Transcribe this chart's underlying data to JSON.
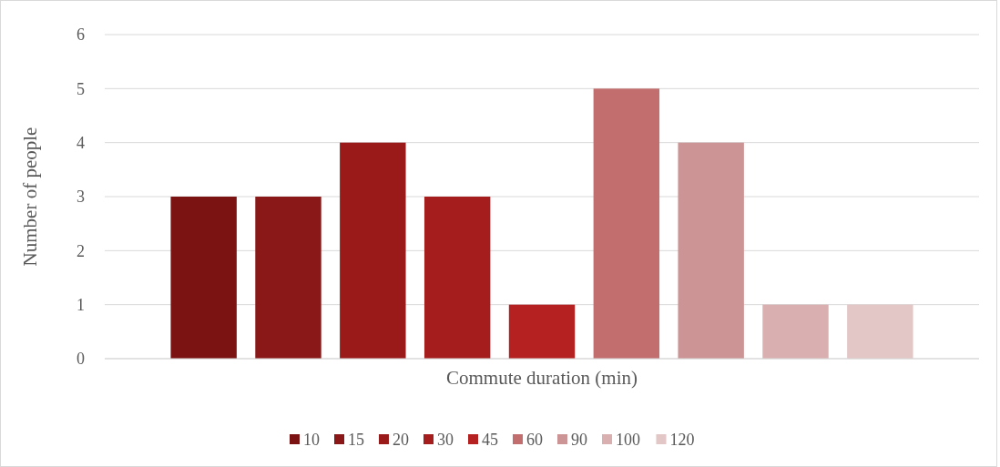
{
  "chart_data": {
    "type": "bar",
    "xlabel": "Commute duration (min)",
    "ylabel": "Number of people",
    "categories": [
      null
    ],
    "series": [
      {
        "name": "10",
        "color": "#7b1313",
        "values": [
          3
        ]
      },
      {
        "name": "15",
        "color": "#8b1818",
        "values": [
          3
        ]
      },
      {
        "name": "20",
        "color": "#9a1a1a",
        "values": [
          4
        ]
      },
      {
        "name": "30",
        "color": "#a61d1d",
        "values": [
          3
        ]
      },
      {
        "name": "45",
        "color": "#b52020",
        "values": [
          1
        ]
      },
      {
        "name": "60",
        "color": "#c26e6e",
        "values": [
          5
        ]
      },
      {
        "name": "90",
        "color": "#cc9494",
        "values": [
          4
        ]
      },
      {
        "name": "100",
        "color": "#d9afaf",
        "values": [
          1
        ]
      },
      {
        "name": "120",
        "color": "#e3c6c6",
        "values": [
          1
        ]
      }
    ],
    "ylim": [
      0,
      6
    ],
    "yticks": [
      0,
      1,
      2,
      3,
      4,
      5,
      6
    ],
    "grid": "y",
    "legend": "bottom"
  }
}
